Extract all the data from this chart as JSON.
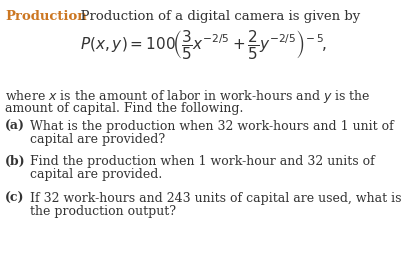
{
  "title_orange": "Production",
  "title_black": "  Production of a digital camera is given by",
  "formula": "$P(x, y) = 100\\!\\left(\\dfrac{3}{5}x^{-2/5} + \\dfrac{2}{5}y^{-2/5}\\right)^{\\!-5}\\!,$",
  "body_line1": "where $x$ is the amount of labor in work-hours and $y$ is the",
  "body_line2": "amount of capital. Find the following.",
  "items": [
    {
      "label": "(a)",
      "line1": "What is the production when 32 work-hours and 1 unit of",
      "line2": "capital are provided?"
    },
    {
      "label": "(b)",
      "line1": "Find the production when 1 work-hour and 32 units of",
      "line2": "capital are provided."
    },
    {
      "label": "(c)",
      "line1": "If 32 work-hours and 243 units of capital are used, what is",
      "line2": "the production output?"
    }
  ],
  "bg_color": "#ffffff",
  "text_color": "#333333",
  "orange_color": "#CC7722",
  "fs_title": 9.5,
  "fs_body": 9.0,
  "fs_formula": 9.5,
  "fig_width": 4.07,
  "fig_height": 2.6,
  "dpi": 100
}
